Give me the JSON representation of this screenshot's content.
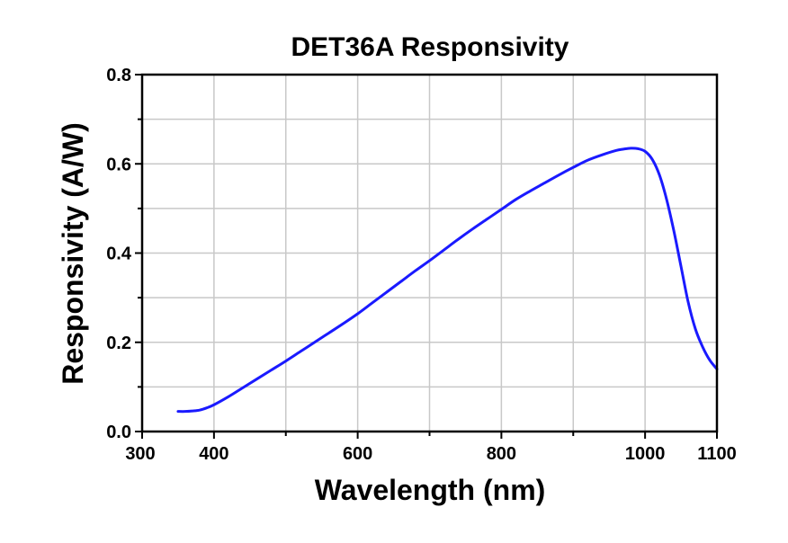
{
  "chart_data": {
    "type": "line",
    "title": "DET36A Responsivity",
    "xlabel": "Wavelength (nm)",
    "ylabel": "Responsivity (A/W)",
    "xlim": [
      300,
      1100
    ],
    "ylim": [
      0,
      0.8
    ],
    "x_ticks": [
      300,
      400,
      600,
      800,
      1000,
      1100
    ],
    "x_tick_labels": [
      "300",
      "400",
      "600",
      "800",
      "1000",
      "1100"
    ],
    "x_minor_ticks": [
      500,
      700,
      900
    ],
    "y_ticks": [
      0,
      0.2,
      0.4,
      0.6,
      0.8
    ],
    "y_tick_labels": [
      "0.0",
      "0.2",
      "0.4",
      "0.6",
      "0.8"
    ],
    "y_minor_ticks": [
      0.1,
      0.3,
      0.5,
      0.7
    ],
    "x_grid": [
      300,
      400,
      500,
      600,
      700,
      800,
      900,
      1000,
      1100
    ],
    "y_grid": [
      0,
      0.1,
      0.2,
      0.3,
      0.4,
      0.5,
      0.6,
      0.7,
      0.8
    ],
    "grid": true,
    "legend": "none",
    "series": [
      {
        "color": "#1a1aff",
        "x": [
          350,
          360,
          370,
          380,
          390,
          400,
          420,
          440,
          460,
          480,
          500,
          520,
          540,
          560,
          580,
          600,
          620,
          640,
          660,
          680,
          700,
          720,
          740,
          760,
          780,
          800,
          820,
          840,
          860,
          880,
          900,
          920,
          940,
          960,
          970,
          980,
          990,
          1000,
          1010,
          1020,
          1030,
          1040,
          1050,
          1060,
          1070,
          1080,
          1090,
          1100
        ],
        "y": [
          0.045,
          0.045,
          0.046,
          0.048,
          0.053,
          0.06,
          0.078,
          0.098,
          0.118,
          0.138,
          0.158,
          0.179,
          0.2,
          0.221,
          0.242,
          0.264,
          0.288,
          0.312,
          0.336,
          0.36,
          0.383,
          0.407,
          0.431,
          0.454,
          0.476,
          0.498,
          0.52,
          0.539,
          0.557,
          0.575,
          0.592,
          0.608,
          0.62,
          0.63,
          0.633,
          0.635,
          0.634,
          0.628,
          0.61,
          0.575,
          0.52,
          0.45,
          0.37,
          0.29,
          0.23,
          0.19,
          0.16,
          0.14
        ]
      }
    ]
  }
}
